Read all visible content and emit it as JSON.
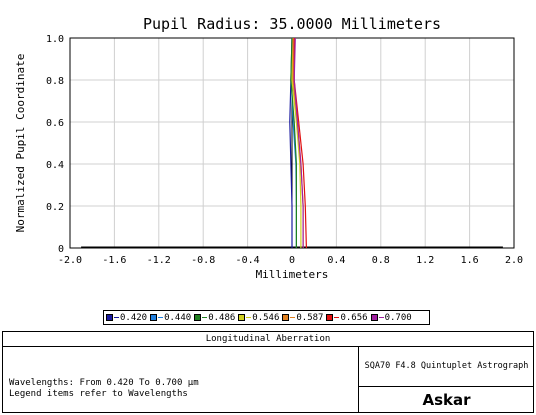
{
  "chart_data": {
    "type": "line",
    "title": "Pupil Radius: 35.0000 Millimeters",
    "xlabel": "Millimeters",
    "ylabel": "Normalized Pupil Coordinate",
    "xlim": [
      -2.0,
      2.0
    ],
    "ylim": [
      0,
      1.0
    ],
    "xticks": [
      "-2.0",
      "-1.6",
      "-1.2",
      "-0.8",
      "-0.4",
      "0",
      "0.4",
      "0.8",
      "1.2",
      "1.6",
      "2.0"
    ],
    "yticks": [
      "0",
      "0.2",
      "0.4",
      "0.6",
      "0.8",
      "1.0"
    ],
    "grid": true,
    "series": [
      {
        "name": "0.420",
        "color": "#1a1aa0",
        "x": [
          0.0,
          0.0,
          -0.01,
          -0.02,
          -0.01,
          0.0
        ],
        "y": [
          0,
          0.2,
          0.4,
          0.6,
          0.8,
          1.0
        ]
      },
      {
        "name": "0.440",
        "color": "#2080e0",
        "x": [
          0.04,
          0.04,
          0.035,
          0.01,
          -0.005,
          0.0
        ],
        "y": [
          0,
          0.2,
          0.4,
          0.6,
          0.8,
          1.0
        ]
      },
      {
        "name": "0.486",
        "color": "#208020",
        "x": [
          0.04,
          0.04,
          0.04,
          0.02,
          -0.01,
          0.0
        ],
        "y": [
          0,
          0.2,
          0.4,
          0.6,
          0.8,
          1.0
        ]
      },
      {
        "name": "0.546",
        "color": "#d0d020",
        "x": [
          0.08,
          0.08,
          0.07,
          0.04,
          0.0,
          0.01
        ],
        "y": [
          0,
          0.2,
          0.4,
          0.6,
          0.8,
          1.0
        ]
      },
      {
        "name": "0.587",
        "color": "#e08020",
        "x": [
          0.1,
          0.1,
          0.08,
          0.05,
          0.01,
          0.01
        ],
        "y": [
          0,
          0.2,
          0.4,
          0.6,
          0.8,
          1.0
        ]
      },
      {
        "name": "0.656",
        "color": "#e01010",
        "x": [
          0.13,
          0.12,
          0.1,
          0.06,
          0.02,
          0.02
        ],
        "y": [
          0,
          0.2,
          0.4,
          0.6,
          0.8,
          1.0
        ]
      },
      {
        "name": "0.700",
        "color": "#a020a0",
        "x": [
          0.1,
          0.1,
          0.08,
          0.05,
          0.02,
          0.03
        ],
        "y": [
          0,
          0.2,
          0.4,
          0.6,
          0.8,
          1.0
        ]
      }
    ]
  },
  "legend": {
    "items": [
      {
        "label": "0.420",
        "color": "#1a1aa0"
      },
      {
        "label": "0.440",
        "color": "#2080e0"
      },
      {
        "label": "0.486",
        "color": "#208020"
      },
      {
        "label": "0.546",
        "color": "#d0d020"
      },
      {
        "label": "0.587",
        "color": "#e08020"
      },
      {
        "label": "0.656",
        "color": "#e01010"
      },
      {
        "label": "0.700",
        "color": "#a020a0"
      }
    ]
  },
  "info": {
    "title": "Longitudinal Aberration",
    "line1": "Wavelengths: From 0.420 To 0.700 µm",
    "line2": "Legend items refer to Wavelengths",
    "system": "SQA70 F4.8 Quintuplet Astrograph",
    "logo": "Askar"
  }
}
